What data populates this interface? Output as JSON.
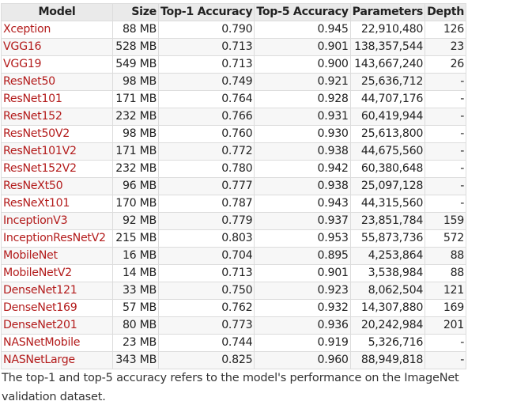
{
  "colors": {
    "model_link": "#b31b1b",
    "header_bg": "#eaeaea",
    "row_alt_bg": "#f7f7f7",
    "border": "#dcdcdc"
  },
  "table": {
    "headers": [
      "Model",
      "Size",
      "Top-1 Accuracy",
      "Top-5 Accuracy",
      "Parameters",
      "Depth"
    ],
    "rows": [
      [
        "Xception",
        "88 MB",
        "0.790",
        "0.945",
        "22,910,480",
        "126"
      ],
      [
        "VGG16",
        "528 MB",
        "0.713",
        "0.901",
        "138,357,544",
        "23"
      ],
      [
        "VGG19",
        "549 MB",
        "0.713",
        "0.900",
        "143,667,240",
        "26"
      ],
      [
        "ResNet50",
        "98 MB",
        "0.749",
        "0.921",
        "25,636,712",
        "-"
      ],
      [
        "ResNet101",
        "171 MB",
        "0.764",
        "0.928",
        "44,707,176",
        "-"
      ],
      [
        "ResNet152",
        "232 MB",
        "0.766",
        "0.931",
        "60,419,944",
        "-"
      ],
      [
        "ResNet50V2",
        "98 MB",
        "0.760",
        "0.930",
        "25,613,800",
        "-"
      ],
      [
        "ResNet101V2",
        "171 MB",
        "0.772",
        "0.938",
        "44,675,560",
        "-"
      ],
      [
        "ResNet152V2",
        "232 MB",
        "0.780",
        "0.942",
        "60,380,648",
        "-"
      ],
      [
        "ResNeXt50",
        "96 MB",
        "0.777",
        "0.938",
        "25,097,128",
        "-"
      ],
      [
        "ResNeXt101",
        "170 MB",
        "0.787",
        "0.943",
        "44,315,560",
        "-"
      ],
      [
        "InceptionV3",
        "92 MB",
        "0.779",
        "0.937",
        "23,851,784",
        "159"
      ],
      [
        "InceptionResNetV2",
        "215 MB",
        "0.803",
        "0.953",
        "55,873,736",
        "572"
      ],
      [
        "MobileNet",
        "16 MB",
        "0.704",
        "0.895",
        "4,253,864",
        "88"
      ],
      [
        "MobileNetV2",
        "14 MB",
        "0.713",
        "0.901",
        "3,538,984",
        "88"
      ],
      [
        "DenseNet121",
        "33 MB",
        "0.750",
        "0.923",
        "8,062,504",
        "121"
      ],
      [
        "DenseNet169",
        "57 MB",
        "0.762",
        "0.932",
        "14,307,880",
        "169"
      ],
      [
        "DenseNet201",
        "80 MB",
        "0.773",
        "0.936",
        "20,242,984",
        "201"
      ],
      [
        "NASNetMobile",
        "23 MB",
        "0.744",
        "0.919",
        "5,326,716",
        "-"
      ],
      [
        "NASNetLarge",
        "343 MB",
        "0.825",
        "0.960",
        "88,949,818",
        "-"
      ]
    ]
  },
  "caption": "The top-1 and top-5 accuracy refers to the model's performance on the ImageNet validation dataset."
}
